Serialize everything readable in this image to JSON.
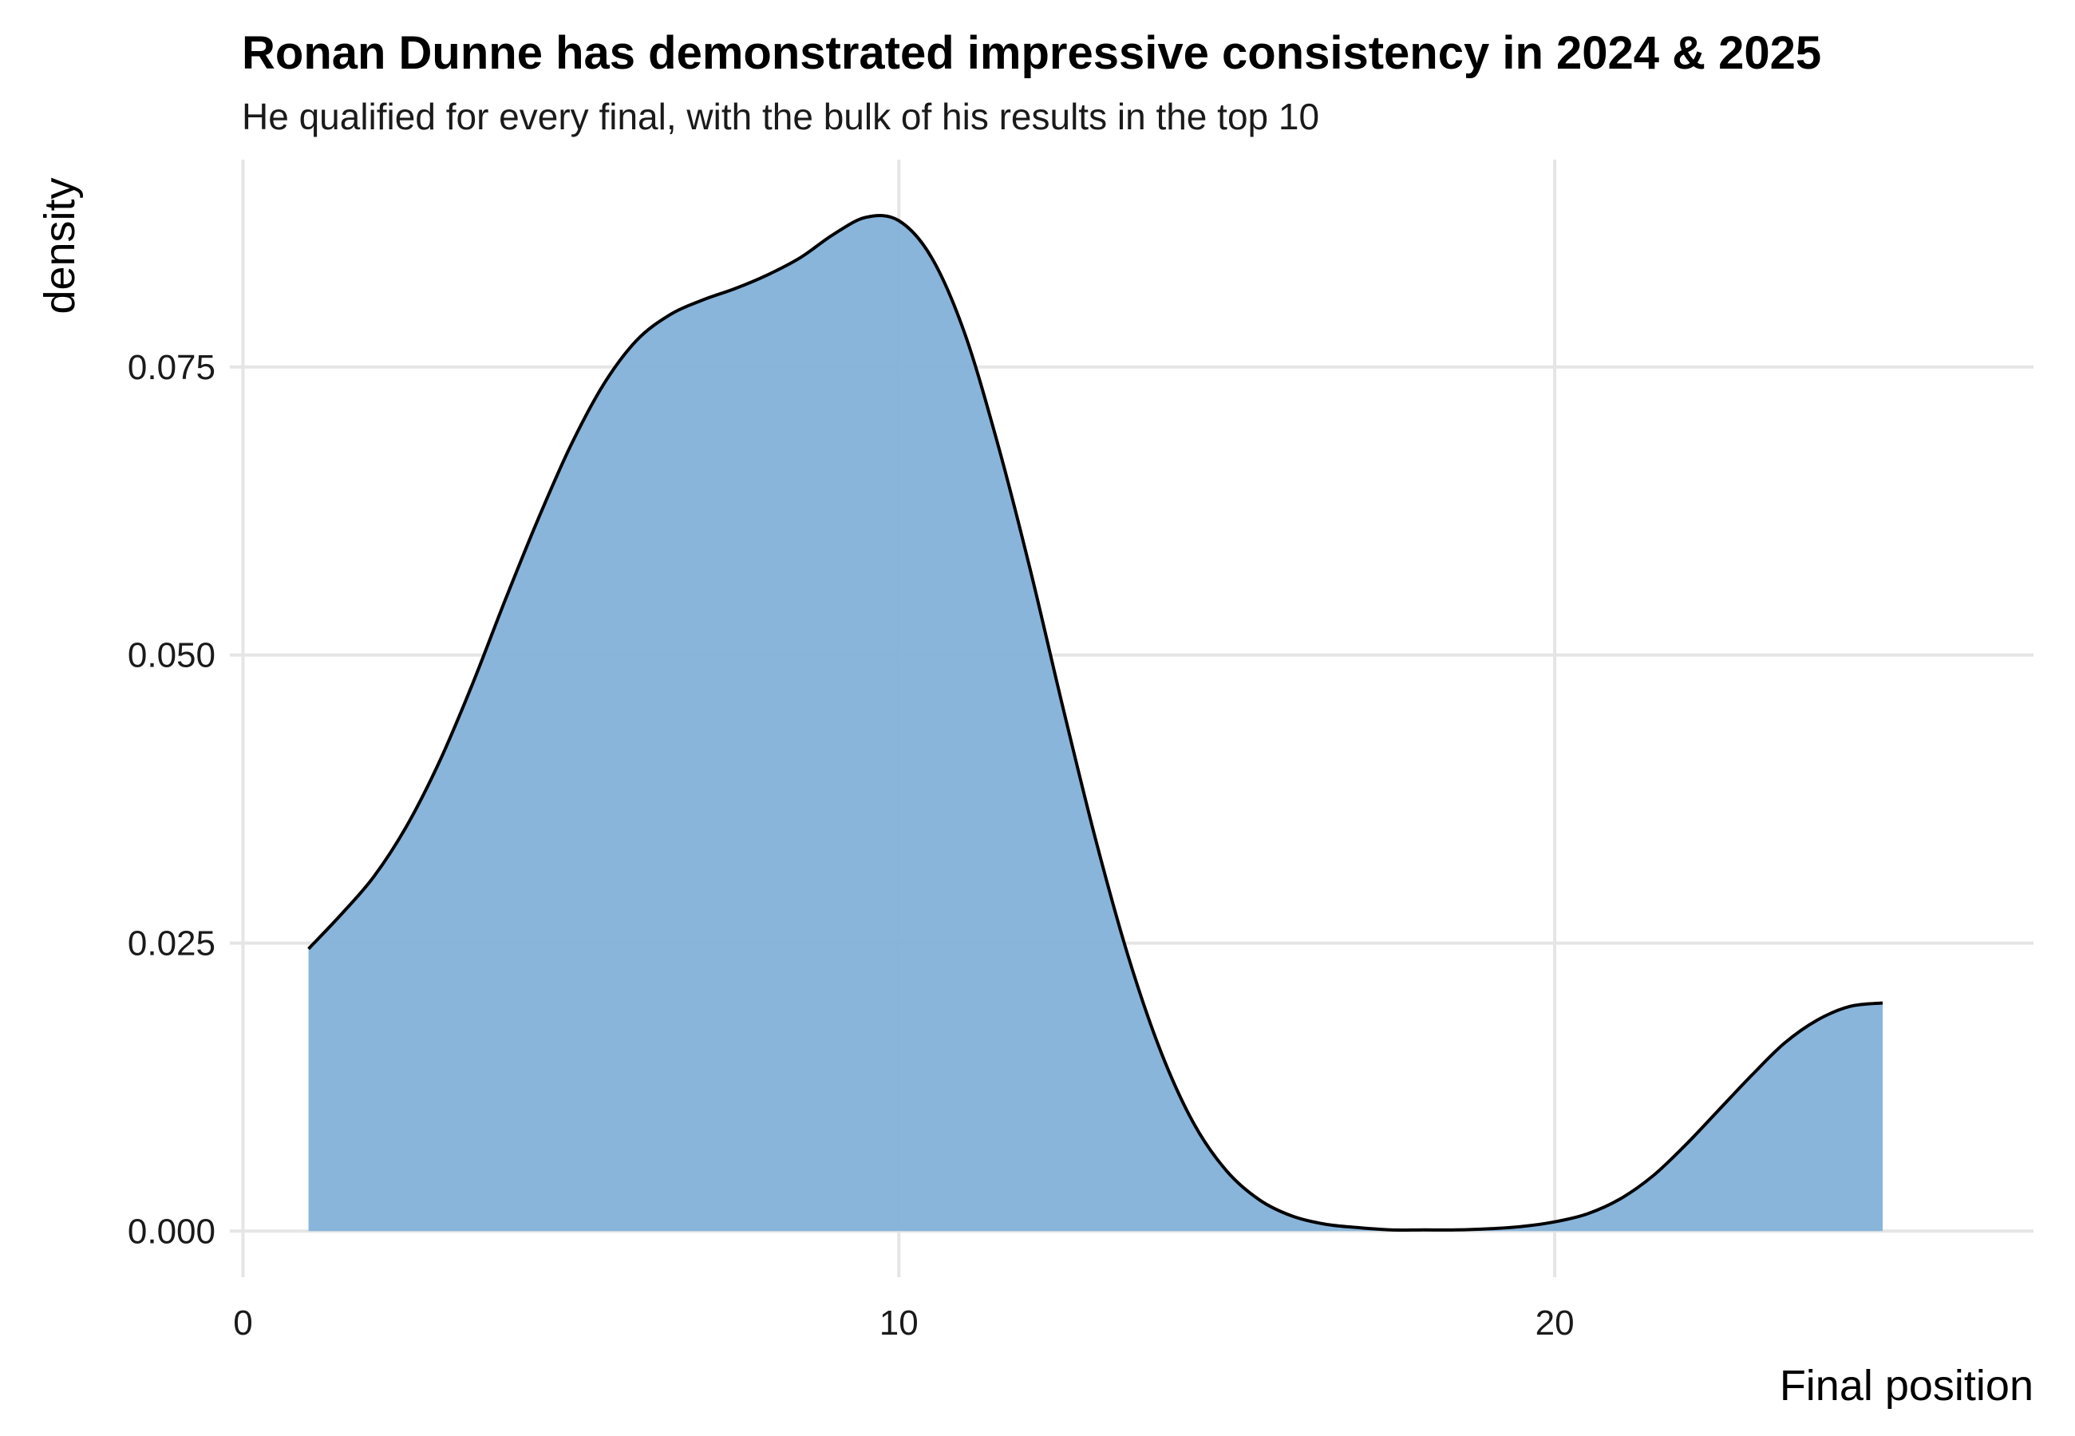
{
  "chart_data": {
    "type": "area",
    "title": "Ronan Dunne has demonstrated impressive consistency in 2024 & 2025",
    "subtitle": "He qualified for every final, with the bulk of his results in the top 10",
    "xlabel": "Final position",
    "ylabel": "density",
    "xlim": [
      -0.2,
      27.3
    ],
    "ylim": [
      -0.004,
      0.093
    ],
    "x_ticks": [
      0,
      10,
      20
    ],
    "y_ticks": [
      0.0,
      0.025,
      0.05,
      0.075
    ],
    "x_tick_labels": [
      "0",
      "10",
      "20"
    ],
    "y_tick_labels": [
      "0.000",
      "0.025",
      "0.050",
      "0.075"
    ],
    "grid": true,
    "fill_color": "#84b2da",
    "line_color": "#000000",
    "series": [
      {
        "x": [
          1,
          1.5,
          2,
          2.5,
          3,
          3.5,
          4,
          4.5,
          5,
          5.5,
          6,
          6.5,
          7,
          7.5,
          8,
          8.5,
          9,
          9.5,
          10,
          10.5,
          11,
          11.5,
          12,
          12.5,
          13,
          13.5,
          14,
          14.5,
          15,
          15.5,
          16,
          16.5,
          17,
          17.5,
          18,
          18.5,
          19,
          19.5,
          20,
          20.5,
          21,
          21.5,
          22,
          22.5,
          23,
          23.5,
          24,
          24.5,
          25
        ],
        "y": [
          0.0245,
          0.0275,
          0.0308,
          0.0352,
          0.0408,
          0.0475,
          0.0548,
          0.0618,
          0.0682,
          0.0735,
          0.0773,
          0.0795,
          0.0808,
          0.0818,
          0.083,
          0.0845,
          0.0865,
          0.088,
          0.0877,
          0.0845,
          0.078,
          0.0685,
          0.0575,
          0.0455,
          0.034,
          0.0238,
          0.0155,
          0.0093,
          0.0052,
          0.0027,
          0.0013,
          0.0006,
          0.0003,
          0.0001,
          0.0001,
          0.0001,
          0.0002,
          0.0004,
          0.0008,
          0.0015,
          0.0028,
          0.0048,
          0.0075,
          0.0105,
          0.0135,
          0.0163,
          0.0183,
          0.0195,
          0.0198
        ]
      }
    ]
  }
}
